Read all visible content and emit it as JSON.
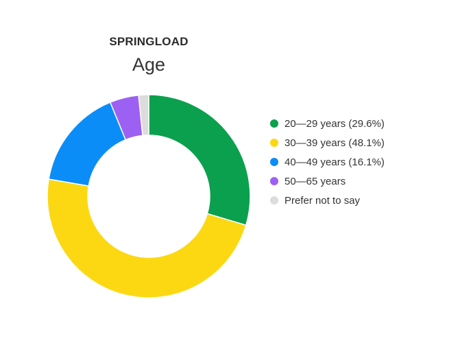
{
  "header": {
    "brand": "SPRINGLOAD",
    "title": "Age"
  },
  "chart_data": {
    "type": "pie",
    "variant": "donut",
    "title": "Age",
    "legend_position": "right",
    "categories": [
      "20—29 years",
      "30—39 years",
      "40—49 years",
      "50—65 years",
      "Prefer not to say"
    ],
    "values": [
      29.6,
      48.1,
      16.1,
      4.6,
      1.6
    ],
    "colors": [
      "#0ba04d",
      "#fcd813",
      "#0b8df7",
      "#9c61f2",
      "#dcdcdc"
    ],
    "legend": [
      {
        "label": "20—29 years (29.6%)",
        "color": "#0ba04d"
      },
      {
        "label": "30—39 years (48.1%)",
        "color": "#fcd813"
      },
      {
        "label": "40—49 years (16.1%)",
        "color": "#0b8df7"
      },
      {
        "label": "50—65 years",
        "color": "#9c61f2"
      },
      {
        "label": "Prefer not to say",
        "color": "#dcdcdc"
      }
    ]
  }
}
